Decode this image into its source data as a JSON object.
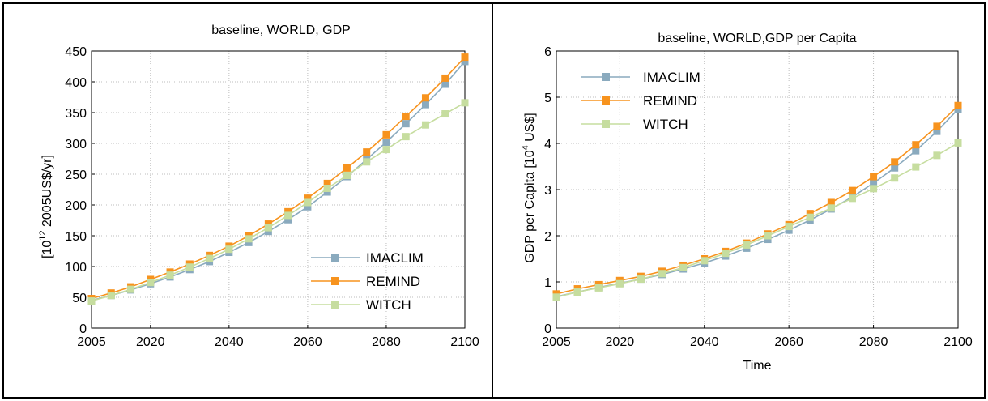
{
  "chart_data": [
    {
      "type": "line",
      "title": "baseline, WORLD, GDP",
      "xlabel": "",
      "ylabel": "[10^12 2005US$/yr]",
      "ylabel_base": "[10",
      "ylabel_exp": "12",
      "ylabel_rest": " 2005US$/yr]",
      "xlim": [
        2005,
        2100
      ],
      "ylim": [
        0,
        450
      ],
      "xticks": [
        2005,
        2020,
        2040,
        2060,
        2080,
        2100
      ],
      "yticks": [
        0,
        50,
        100,
        150,
        200,
        250,
        300,
        350,
        400,
        450
      ],
      "grid": true,
      "legend_position": "bottom-right",
      "x": [
        2005,
        2010,
        2015,
        2020,
        2025,
        2030,
        2035,
        2040,
        2045,
        2050,
        2055,
        2060,
        2065,
        2070,
        2075,
        2080,
        2085,
        2090,
        2095,
        2100
      ],
      "series": [
        {
          "name": "IMACLIM",
          "color": "#8aaabe",
          "values": [
            45,
            53,
            62,
            72,
            83,
            95,
            108,
            123,
            139,
            157,
            176,
            197,
            221,
            246,
            274,
            302,
            332,
            363,
            396,
            433
          ]
        },
        {
          "name": "REMIND",
          "color": "#f7931e",
          "values": [
            48,
            57,
            67,
            79,
            91,
            104,
            118,
            133,
            150,
            169,
            189,
            211,
            235,
            260,
            286,
            314,
            344,
            374,
            406,
            440
          ]
        },
        {
          "name": "WITCH",
          "color": "#c6dd9f",
          "values": [
            44,
            53,
            63,
            74,
            86,
            99,
            113,
            128,
            145,
            163,
            183,
            204,
            227,
            248,
            270,
            290,
            311,
            330,
            348,
            366
          ]
        }
      ]
    },
    {
      "type": "line",
      "title": "baseline, WORLD,GDP per Capita",
      "xlabel": "Time",
      "ylabel": "GDP per Capita [10^4 US$]",
      "ylabel_base": "GDP per Capita [10",
      "ylabel_exp": "4",
      "ylabel_rest": " US$]",
      "xlim": [
        2005,
        2100
      ],
      "ylim": [
        0,
        6
      ],
      "xticks": [
        2005,
        2020,
        2040,
        2060,
        2080,
        2100
      ],
      "yticks": [
        0,
        1,
        2,
        3,
        4,
        5,
        6
      ],
      "grid": true,
      "legend_position": "top-left",
      "x": [
        2005,
        2010,
        2015,
        2020,
        2025,
        2030,
        2035,
        2040,
        2045,
        2050,
        2055,
        2060,
        2065,
        2070,
        2075,
        2080,
        2085,
        2090,
        2095,
        2100
      ],
      "series": [
        {
          "name": "IMACLIM",
          "color": "#8aaabe",
          "values": [
            0.68,
            0.78,
            0.88,
            0.97,
            1.06,
            1.16,
            1.28,
            1.41,
            1.56,
            1.73,
            1.92,
            2.12,
            2.34,
            2.58,
            2.84,
            3.14,
            3.47,
            3.84,
            4.26,
            4.74
          ]
        },
        {
          "name": "REMIND",
          "color": "#f7931e",
          "values": [
            0.74,
            0.85,
            0.94,
            1.03,
            1.12,
            1.23,
            1.36,
            1.5,
            1.66,
            1.84,
            2.04,
            2.24,
            2.48,
            2.72,
            2.98,
            3.28,
            3.6,
            3.97,
            4.37,
            4.82
          ]
        },
        {
          "name": "WITCH",
          "color": "#c6dd9f",
          "values": [
            0.67,
            0.78,
            0.87,
            0.96,
            1.06,
            1.18,
            1.31,
            1.46,
            1.62,
            1.8,
            2.0,
            2.2,
            2.4,
            2.6,
            2.81,
            3.02,
            3.25,
            3.49,
            3.74,
            4.01
          ]
        }
      ]
    }
  ]
}
